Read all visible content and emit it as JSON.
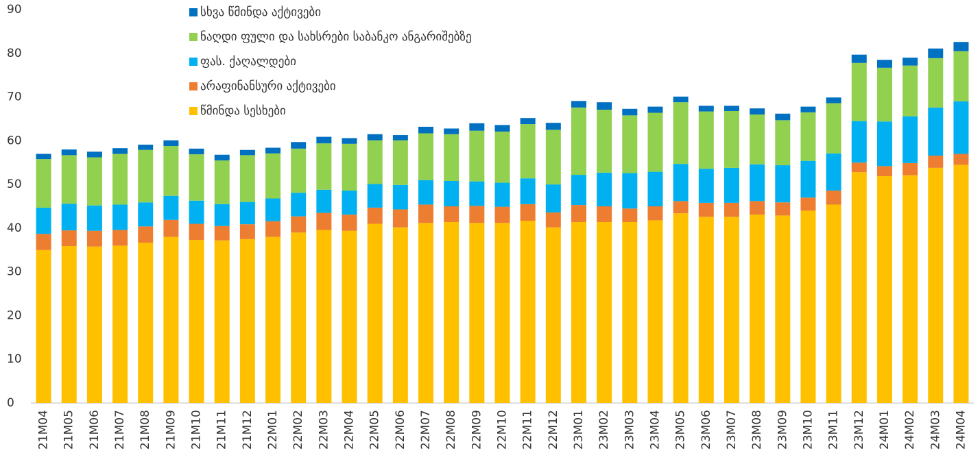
{
  "chart_data": {
    "type": "stacked_bar",
    "categories": [
      "21M04",
      "21M05",
      "21M06",
      "21M07",
      "21M08",
      "21M09",
      "21M10",
      "21M11",
      "21M12",
      "22M01",
      "22M02",
      "22M03",
      "22M04",
      "22M05",
      "22M06",
      "22M07",
      "22M08",
      "22M09",
      "22M10",
      "22M11",
      "22M12",
      "23M01",
      "23M02",
      "23M03",
      "23M04",
      "23M05",
      "23M06",
      "23M07",
      "23M08",
      "23M09",
      "23M10",
      "23M11",
      "23M12",
      "24M01",
      "24M02",
      "24M03",
      "24M04"
    ],
    "series": [
      {
        "name": "წმინდა სესხები",
        "color": "#FFC000",
        "values": [
          35.0,
          35.9,
          35.8,
          36.0,
          36.7,
          38.0,
          37.3,
          37.2,
          37.5,
          38.0,
          39.0,
          39.6,
          39.4,
          41.0,
          40.2,
          41.2,
          41.4,
          41.2,
          41.2,
          41.7,
          40.2,
          41.4,
          41.4,
          41.4,
          41.8,
          43.4,
          42.6,
          42.6,
          43.1,
          42.9,
          44.0,
          45.4,
          52.8,
          51.9,
          52.1,
          53.8,
          54.5
        ]
      },
      {
        "name": "არაფინანსური აქტივები",
        "color": "#ED7D31",
        "values": [
          3.7,
          3.6,
          3.6,
          3.6,
          3.7,
          3.9,
          3.7,
          3.3,
          3.4,
          3.6,
          3.7,
          3.9,
          3.7,
          3.7,
          4.1,
          4.2,
          3.6,
          3.9,
          3.7,
          3.8,
          3.4,
          3.9,
          3.6,
          3.1,
          3.2,
          2.8,
          3.2,
          3.2,
          3.1,
          3.0,
          3.0,
          3.2,
          2.2,
          2.3,
          2.8,
          2.8,
          2.5
        ]
      },
      {
        "name": "ფას. ქაღალდები",
        "color": "#00B0F0",
        "values": [
          6.0,
          6.1,
          5.8,
          5.8,
          5.5,
          5.5,
          5.3,
          5.0,
          5.1,
          5.2,
          5.4,
          5.3,
          5.5,
          5.4,
          5.6,
          5.6,
          5.8,
          5.6,
          5.5,
          5.9,
          6.4,
          6.9,
          7.7,
          8.1,
          7.9,
          8.5,
          7.8,
          8.0,
          8.4,
          8.5,
          8.4,
          8.5,
          9.5,
          10.2,
          10.7,
          11.0,
          12.0
        ]
      },
      {
        "name": "ნაღდი ფული და სახსრები საბანკო ანგარიშებზე",
        "color": "#92D050",
        "values": [
          11.1,
          11.1,
          11.0,
          11.6,
          12.0,
          11.4,
          10.6,
          10.0,
          10.7,
          10.3,
          10.1,
          10.6,
          10.7,
          10.0,
          10.2,
          10.7,
          10.7,
          11.6,
          11.7,
          12.4,
          12.5,
          15.4,
          14.4,
          13.2,
          13.5,
          14.1,
          13.1,
          13.0,
          11.4,
          10.3,
          11.1,
          11.5,
          13.3,
          12.3,
          11.6,
          11.3,
          11.5
        ]
      },
      {
        "name": "სხვა წმინდა აქტივები",
        "color": "#0070C0",
        "values": [
          1.2,
          1.3,
          1.3,
          1.3,
          1.2,
          1.3,
          1.3,
          1.3,
          1.2,
          1.3,
          1.5,
          1.5,
          1.3,
          1.4,
          1.2,
          1.5,
          1.3,
          1.7,
          1.5,
          1.4,
          1.6,
          1.5,
          1.7,
          1.5,
          1.4,
          1.3,
          1.3,
          1.2,
          1.4,
          1.5,
          1.3,
          1.3,
          1.9,
          1.8,
          1.8,
          2.2,
          2.1
        ]
      }
    ],
    "ylim": [
      0,
      90
    ],
    "yticks": [
      0,
      10,
      20,
      30,
      40,
      50,
      60,
      70,
      80,
      90
    ],
    "grid": false
  }
}
